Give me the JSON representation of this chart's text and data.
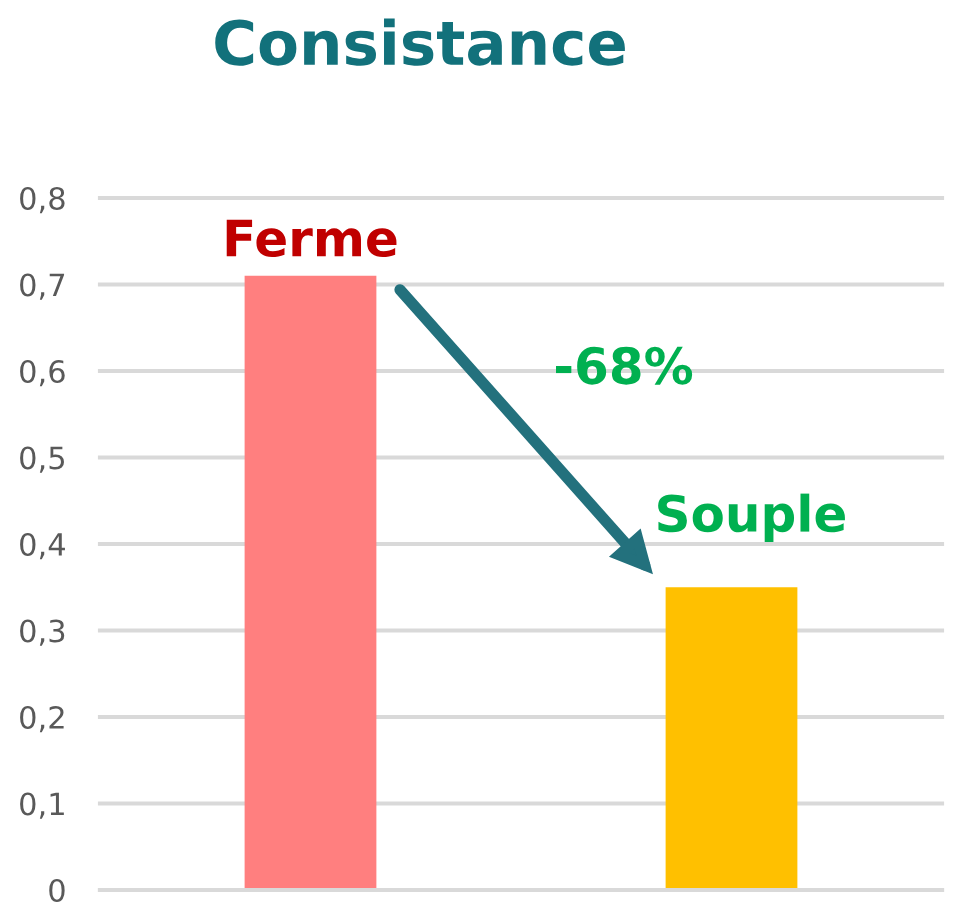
{
  "chart_data": {
    "type": "bar",
    "title": "Consistance",
    "categories": [
      null,
      null
    ],
    "series": [
      {
        "name": "Ferme",
        "color": "#ff7f7f",
        "values": [
          0.71,
          null
        ]
      },
      {
        "name": "Souple",
        "color": "#ffc000",
        "values": [
          null,
          0.35
        ]
      }
    ],
    "ylim": [
      0,
      0.8
    ],
    "yticks": [
      0,
      {
        "value": 0.1,
        "label": "0,1"
      },
      {
        "value": 0.2,
        "label": "0,2"
      },
      {
        "value": 0.3,
        "label": "0,3"
      },
      {
        "value": 0.4,
        "label": "0,4"
      },
      {
        "value": 0.5,
        "label": "0,5"
      },
      {
        "value": 0.6,
        "label": "0,6"
      },
      {
        "value": 0.7,
        "label": "0,7"
      },
      {
        "value": 0.8,
        "label": "0,8"
      }
    ],
    "grid": "y",
    "annotations": [
      "-68%"
    ]
  }
}
